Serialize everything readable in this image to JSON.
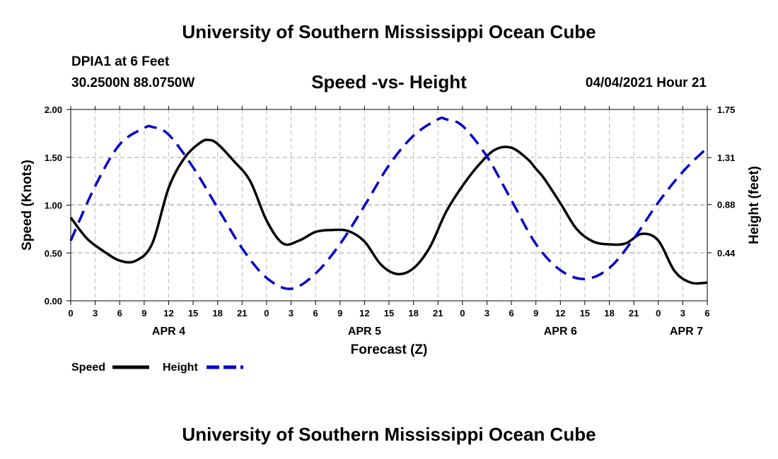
{
  "header": {
    "title": "University of Southern Mississippi Ocean Cube",
    "station": "DPIA1 at 6 Feet",
    "coordinates": "30.2500N  88.0750W",
    "subtitle": "Speed -vs- Height",
    "datetime": "04/04/2021 Hour 21"
  },
  "footer": {
    "title": "University of Southern Mississippi Ocean Cube"
  },
  "colors": {
    "speed": "#000000",
    "height": "#0000cc",
    "grid": "#bbbbbb"
  },
  "chart_data": {
    "type": "line",
    "title": "Speed -vs- Height",
    "xlabel": "Forecast (Z)",
    "ylabel": "Speed (Knots)",
    "y2label": "Height (feet)",
    "xlim": [
      0,
      78
    ],
    "ylim": [
      0,
      2.0
    ],
    "y2lim": [
      0,
      1.75
    ],
    "grid": true,
    "x_ticks": [
      0,
      3,
      6,
      9,
      12,
      15,
      18,
      21,
      24,
      27,
      30,
      33,
      36,
      39,
      42,
      45,
      48,
      51,
      54,
      57,
      60,
      63,
      66,
      69,
      72,
      75,
      78
    ],
    "x_tick_labels": [
      "0",
      "3",
      "6",
      "9",
      "12",
      "15",
      "18",
      "21",
      "0",
      "3",
      "6",
      "9",
      "12",
      "15",
      "18",
      "21",
      "0",
      "3",
      "6",
      "9",
      "12",
      "15",
      "18",
      "21",
      "0",
      "3",
      "6"
    ],
    "day_labels": [
      {
        "x": 12,
        "label": "APR 4"
      },
      {
        "x": 36,
        "label": "APR 5"
      },
      {
        "x": 60,
        "label": "APR 6"
      },
      {
        "x": 78,
        "label": "APR 7"
      }
    ],
    "y_ticks": [
      0.0,
      0.5,
      1.0,
      1.5,
      2.0
    ],
    "y_tick_labels": [
      "0.00",
      "0.50",
      "1.00",
      "1.50",
      "2.00"
    ],
    "y2_ticks": [
      0.44,
      0.88,
      1.31,
      1.75
    ],
    "y2_tick_labels": [
      "0.44",
      "0.88",
      "1.31",
      "1.75"
    ],
    "legend": [
      {
        "name": "Speed",
        "style": "solid",
        "color": "#000000"
      },
      {
        "name": "Height",
        "style": "dashed",
        "color": "#0000cc"
      }
    ],
    "legend_position": "bottom-left",
    "series": [
      {
        "name": "Speed",
        "axis": "left",
        "style": "solid",
        "x": [
          0,
          2,
          4,
          6,
          8,
          10,
          12,
          14,
          16,
          17,
          18,
          20,
          22,
          24,
          26,
          28,
          30,
          32,
          34,
          36,
          38,
          40,
          42,
          44,
          46,
          48,
          50,
          52,
          54,
          56,
          57,
          58,
          60,
          62,
          64,
          66,
          68,
          70,
          72,
          74,
          76,
          78
        ],
        "y": [
          0.87,
          0.65,
          0.52,
          0.42,
          0.42,
          0.6,
          1.18,
          1.5,
          1.66,
          1.68,
          1.64,
          1.46,
          1.25,
          0.84,
          0.6,
          0.63,
          0.72,
          0.74,
          0.73,
          0.62,
          0.38,
          0.28,
          0.34,
          0.56,
          0.93,
          1.2,
          1.42,
          1.58,
          1.6,
          1.48,
          1.38,
          1.28,
          1.02,
          0.75,
          0.62,
          0.59,
          0.6,
          0.7,
          0.63,
          0.31,
          0.19,
          0.19
        ]
      },
      {
        "name": "Height",
        "axis": "right",
        "style": "dashed",
        "x": [
          0,
          3,
          6,
          9,
          10,
          12,
          15,
          18,
          21,
          24,
          27,
          30,
          33,
          36,
          39,
          42,
          45,
          46,
          48,
          51,
          54,
          57,
          60,
          63,
          66,
          69,
          72,
          75,
          78
        ],
        "y": [
          0.55,
          1.05,
          1.43,
          1.58,
          1.59,
          1.52,
          1.22,
          0.85,
          0.48,
          0.21,
          0.11,
          0.25,
          0.52,
          0.87,
          1.24,
          1.51,
          1.66,
          1.66,
          1.6,
          1.32,
          0.92,
          0.52,
          0.28,
          0.2,
          0.3,
          0.57,
          0.9,
          1.18,
          1.4
        ]
      }
    ]
  }
}
